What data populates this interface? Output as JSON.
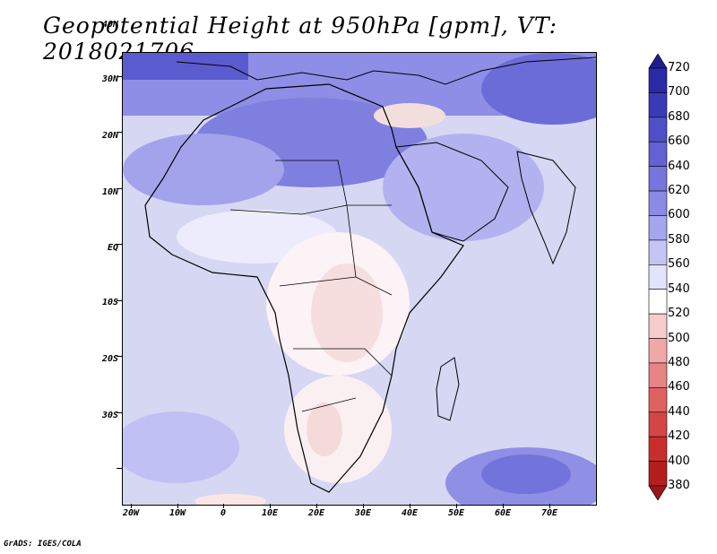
{
  "title": "Geopotential Height at 950hPa [gpm], VT: 2018021706",
  "credit": "GrADS: IGES/COLA",
  "map": {
    "variable": "Geopotential Height",
    "level": "950hPa",
    "units": "gpm",
    "valid_time": "2018021706",
    "lat_ticks": [
      "40N",
      "30N",
      "20N",
      "10N",
      "EQ",
      "10S",
      "20S",
      "30S"
    ],
    "lon_ticks": [
      "20W",
      "10W",
      "0",
      "10E",
      "20E",
      "30E",
      "40E",
      "50E",
      "60E",
      "70E"
    ]
  },
  "colorbar": {
    "levels": [
      "720",
      "700",
      "680",
      "660",
      "640",
      "620",
      "600",
      "580",
      "560",
      "540",
      "520",
      "500",
      "480",
      "460",
      "440",
      "420",
      "400",
      "380"
    ],
    "colors": [
      "#1d1d8f",
      "#2a2aa6",
      "#3a3ab8",
      "#4f4fc8",
      "#6262d4",
      "#7676de",
      "#8b8be6",
      "#a6a6ee",
      "#c4c4f5",
      "#e3e3fb",
      "#ffffff",
      "#f6cccc",
      "#f0a7a7",
      "#e88484",
      "#df6262",
      "#d54545",
      "#c92e2e",
      "#b51e1e",
      "#9c1616"
    ]
  }
}
